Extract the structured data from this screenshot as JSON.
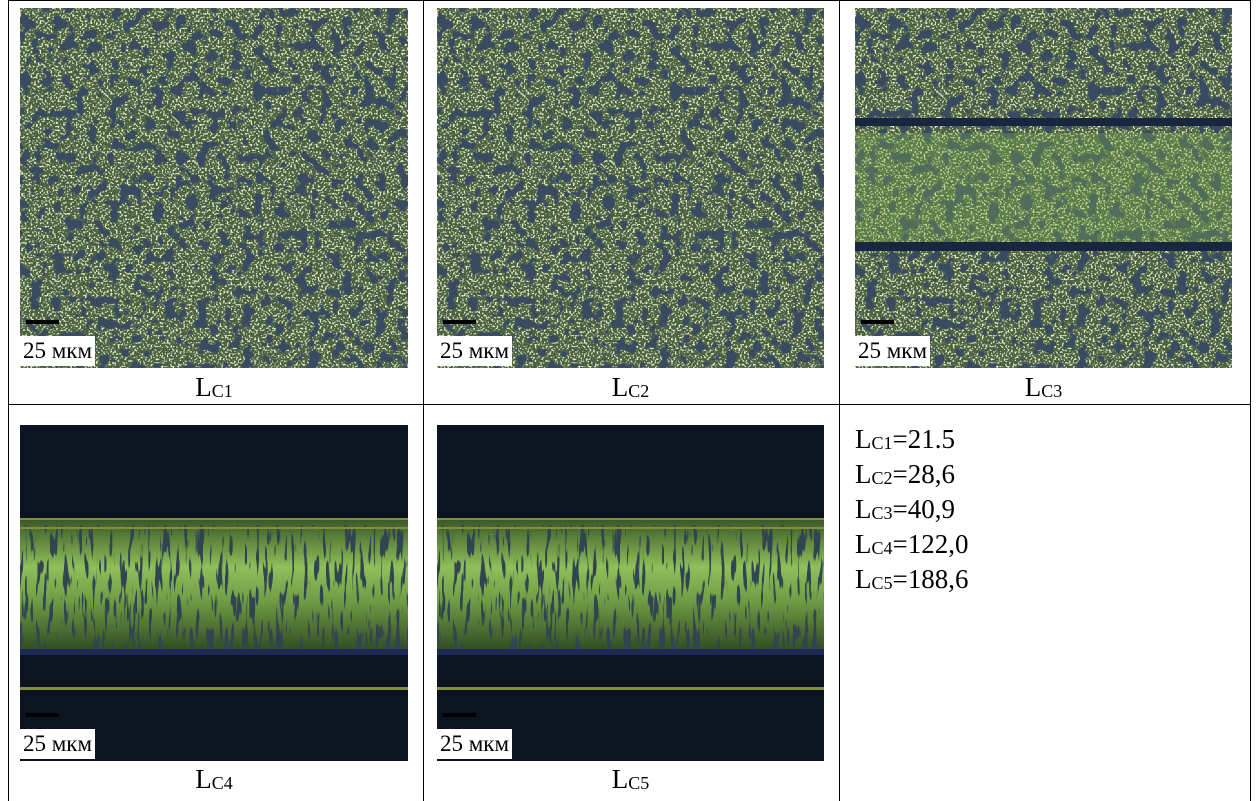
{
  "figure": {
    "panels": [
      {
        "scale_label": "25 мкм",
        "caption": {
          "main": "L",
          "sub": "C1"
        }
      },
      {
        "scale_label": "25 мкм",
        "caption": {
          "main": "L",
          "sub": "C2"
        }
      },
      {
        "scale_label": "25 мкм",
        "caption": {
          "main": "L",
          "sub": "C3"
        }
      },
      {
        "scale_label": "25 мкм",
        "caption": {
          "main": "L",
          "sub": "C4"
        }
      },
      {
        "scale_label": "25 мкм",
        "caption": {
          "main": "L",
          "sub": "C5"
        }
      }
    ],
    "values": [
      {
        "main": "L",
        "sub": "C1",
        "text": "=21.5"
      },
      {
        "main": "L",
        "sub": "C2",
        "text": "=28,6"
      },
      {
        "main": "L",
        "sub": "C3",
        "text": "=40,9"
      },
      {
        "main": "L",
        "sub": "C4",
        "text": "=122,0"
      },
      {
        "main": "L",
        "sub": "C5",
        "text": "=188,6"
      }
    ]
  }
}
